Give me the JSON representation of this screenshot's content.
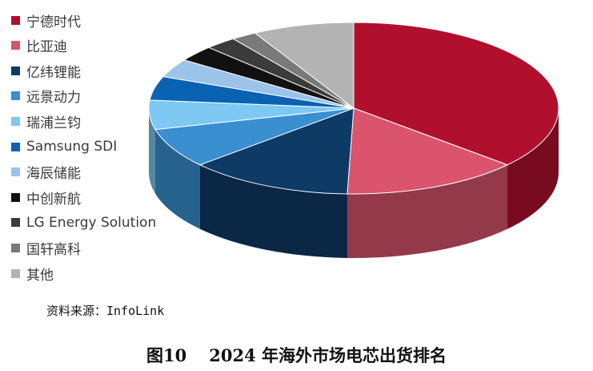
{
  "chart_data": {
    "type": "pie",
    "title": "",
    "categories": [
      "宁德时代",
      "比亚迪",
      "亿纬锂能",
      "远景动力",
      "瑞浦兰钧",
      "Samsung SDI",
      "海辰储能",
      "中创新航",
      "LG Energy Solution",
      "国轩高科",
      "其他"
    ],
    "values": [
      36.5,
      14.0,
      13.0,
      7.5,
      5.5,
      4.5,
      3.5,
      3.0,
      2.5,
      2.0,
      8.0
    ],
    "colors": [
      "#b0102d",
      "#d9546c",
      "#0e3a66",
      "#3a8fd1",
      "#7ec8f4",
      "#0a62b3",
      "#9cc3ea",
      "#111111",
      "#3b3b3b",
      "#7a7a7a",
      "#b3b3b3"
    ],
    "legend_position": "left",
    "style": "3d"
  },
  "source": "资料来源：InfoLink",
  "caption": {
    "figure_no": "图10",
    "text": "2024 年海外市场电芯出货排名"
  }
}
